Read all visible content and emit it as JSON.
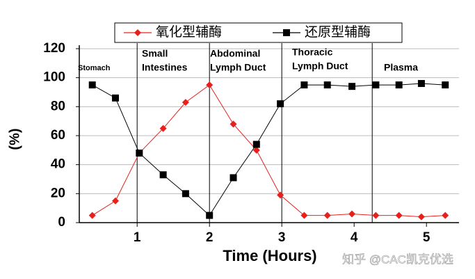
{
  "chart_data": {
    "type": "line",
    "y_label": "(%)",
    "x_label": "Time (Hours)",
    "x": [
      0.38,
      0.7,
      1.03,
      1.36,
      1.67,
      2.0,
      2.33,
      2.65,
      2.98,
      3.31,
      3.63,
      3.97,
      4.3,
      4.62,
      4.93,
      5.26
    ],
    "series": [
      {
        "name": "氧化型辅酶",
        "color": "#e8201c",
        "marker": "diamond",
        "values": [
          5,
          15,
          48,
          65,
          83,
          95,
          68,
          50,
          19,
          5,
          5,
          6,
          5,
          5,
          4,
          5
        ]
      },
      {
        "name": "还原型辅酶",
        "color": "#000000",
        "marker": "square",
        "values": [
          95,
          86,
          48,
          33,
          20,
          5,
          31,
          54,
          82,
          95,
          95,
          94,
          95,
          95,
          96,
          95
        ]
      }
    ],
    "xlim": [
      0.2,
      5.45
    ],
    "xticks": [
      1,
      2,
      3,
      4,
      5
    ],
    "ylim": [
      0,
      120
    ],
    "yticks": [
      0,
      20,
      40,
      60,
      80,
      100,
      120
    ],
    "grid": true,
    "region_boundaries": [
      1,
      2,
      3,
      4.25
    ],
    "regions": [
      [
        "Stomach"
      ],
      [
        "Small",
        "Intestines"
      ],
      [
        "Abdominal",
        "Lymph Duct"
      ],
      [
        "Thoracic",
        "Lymph Duct"
      ],
      [
        "Plasma"
      ]
    ],
    "legend": "top",
    "watermark": "知乎 @CAC凯克优选"
  }
}
